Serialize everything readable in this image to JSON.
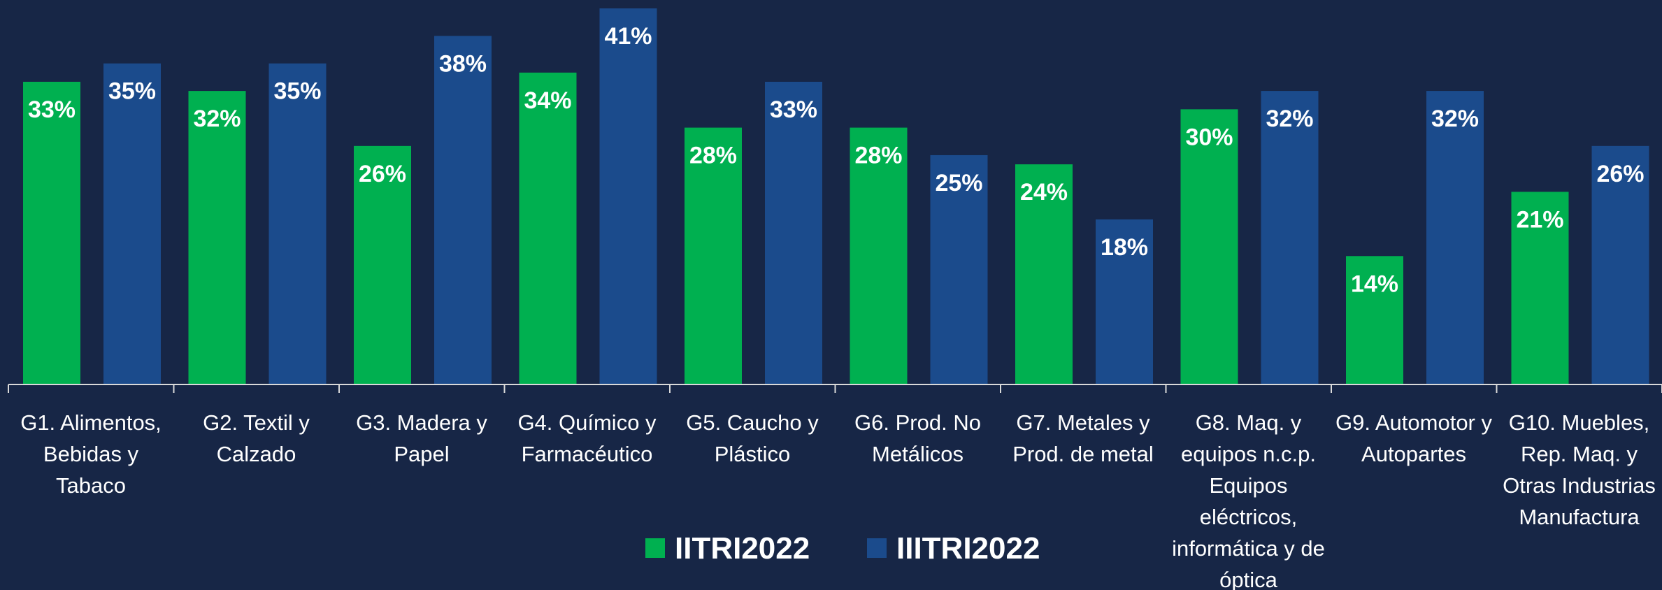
{
  "chart_data": {
    "type": "bar",
    "categories": [
      "G1. Alimentos, Bebidas y Tabaco",
      "G2. Textil y Calzado",
      "G3. Madera y Papel",
      "G4. Químico y Farmacéutico",
      "G5. Caucho y Plástico",
      "G6. Prod. No Metálicos",
      "G7. Metales y Prod. de metal",
      "G8. Maq. y equipos n.c.p. Equipos eléctricos, informática y de óptica",
      "G9. Automotor y Autopartes",
      "G10. Muebles, Rep. Maq. y Otras Industrias Manufactura"
    ],
    "series": [
      {
        "name": "IITRI2022",
        "color": "#00b050",
        "values": [
          33,
          32,
          26,
          34,
          28,
          28,
          24,
          30,
          14,
          21
        ],
        "value_labels": [
          "33%",
          "32%",
          "26%",
          "34%",
          "28%",
          "28%",
          "24%",
          "30%",
          "14%",
          "21%"
        ]
      },
      {
        "name": "IIITRI2022",
        "color": "#1b4b8c",
        "values": [
          35,
          35,
          38,
          41,
          33,
          25,
          18,
          32,
          32,
          26
        ],
        "value_labels": [
          "35%",
          "35%",
          "38%",
          "41%",
          "33%",
          "25%",
          "18%",
          "32%",
          "32%",
          "26%"
        ]
      }
    ]
  }
}
